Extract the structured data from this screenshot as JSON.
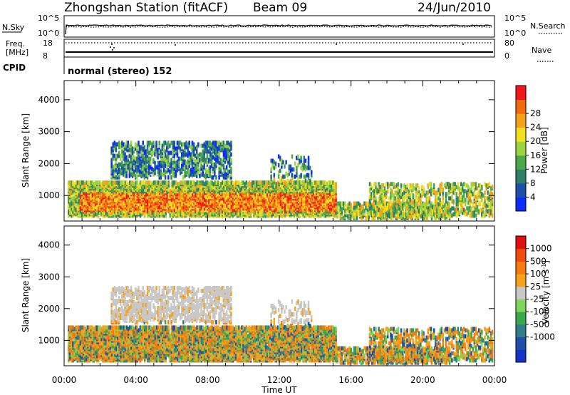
{
  "header": {
    "station": "Zhongshan Station (fitACF)",
    "beam": "Beam 09",
    "date": "24/Jun/2010"
  },
  "mini_panels": {
    "nsky_label": "N.Sky",
    "nsearch_label": "N.Search",
    "nsky_ticks": [
      "10^5",
      "10^0"
    ],
    "nsearch_ticks": [
      "10^5",
      "10^0"
    ],
    "freq_label_1": "Freq.",
    "freq_label_2": "[MHz]",
    "freq_ticks": [
      "18",
      "8"
    ],
    "nave_label": "Nave",
    "nave_ticks": [
      "80",
      "0"
    ],
    "cpid_label": "CPID",
    "cpid_text": "normal (stereo) 152"
  },
  "colors": {
    "power": [
      "#0b2bff",
      "#1f4fa8",
      "#2f7e6a",
      "#4aa84a",
      "#9bd640",
      "#f2e020",
      "#f5a21a",
      "#f26a10",
      "#f21818"
    ],
    "velocity": [
      "#e01010",
      "#f24a10",
      "#f57a12",
      "#f6a21a",
      "#c8c8c8",
      "#7fd65a",
      "#3aa84c",
      "#2f7e8a",
      "#1f4fa8",
      "#1533c8"
    ]
  },
  "chart_data": [
    {
      "type": "heatmap",
      "title": "Power",
      "ylabel": "Slant Range [km]",
      "y_ticks": [
        "1000",
        "2000",
        "3000",
        "4000"
      ],
      "x_ticks": [
        "00:00",
        "04:00",
        "08:00",
        "12:00",
        "16:00",
        "20:00",
        "00:00"
      ],
      "ylim": [
        200,
        4600
      ],
      "xlim_hours": [
        0,
        24
      ],
      "colorbar": {
        "label": "Power [dB]",
        "ticks": [
          "4",
          "8",
          "12",
          "16",
          "20",
          "24",
          "28"
        ]
      }
    },
    {
      "type": "heatmap",
      "title": "Velocity",
      "ylabel": "Slant Range [km]",
      "xlabel": "Time UT",
      "y_ticks": [
        "1000",
        "2000",
        "3000",
        "4000"
      ],
      "x_ticks": [
        "00:00",
        "04:00",
        "08:00",
        "12:00",
        "16:00",
        "20:00",
        "00:00"
      ],
      "ylim": [
        200,
        4600
      ],
      "xlim_hours": [
        0,
        24
      ],
      "colorbar": {
        "label": "Velocity [m s",
        "label_sup": "-1",
        "label_end": "]",
        "ticks": [
          "1000",
          "500",
          "100",
          "25",
          "-25",
          "-100",
          "-500",
          "-1000"
        ]
      }
    }
  ]
}
